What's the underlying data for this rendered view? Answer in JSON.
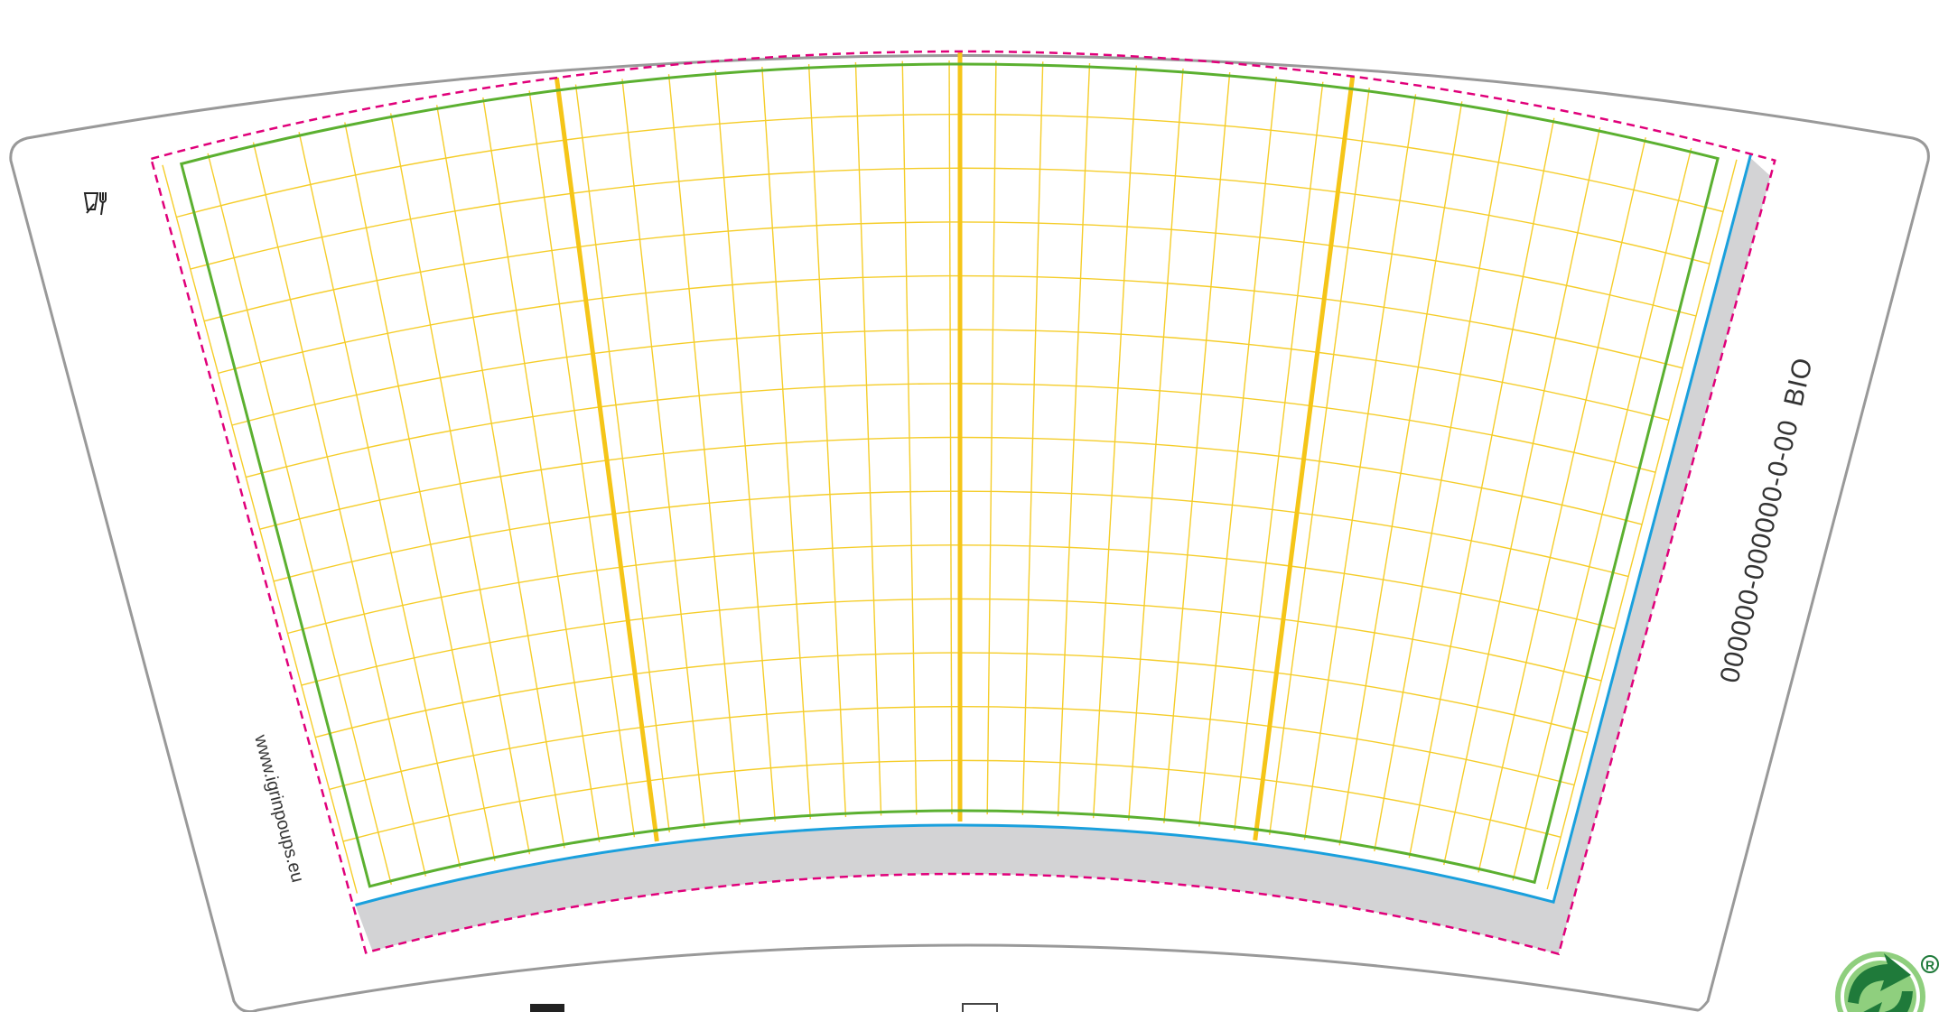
{
  "template": {
    "cup_code": "000000-000000-0-00",
    "material": "BIO",
    "website": "www.igrinpoups.eu",
    "legend": [
      {
        "swatch": "filled",
        "label": ""
      },
      {
        "swatch": "outline",
        "label": ""
      }
    ]
  },
  "colors": {
    "outer_outline": "#999999",
    "bleed_dashed": "#e0007a",
    "safe_area": "#5bb030",
    "glue_edge": "#1aa0dd",
    "grid_fine": "#f5cd2a",
    "grid_bold": "#f5c518",
    "glue_strip": "#d3d3d5",
    "logo_green": "#1f7a3a",
    "logo_light": "#8fcf7e"
  },
  "icons": {
    "cup_symbol": "cup-fork-icon",
    "recycling": "green-dot-recycling-icon",
    "registered": "registered-mark-icon"
  }
}
